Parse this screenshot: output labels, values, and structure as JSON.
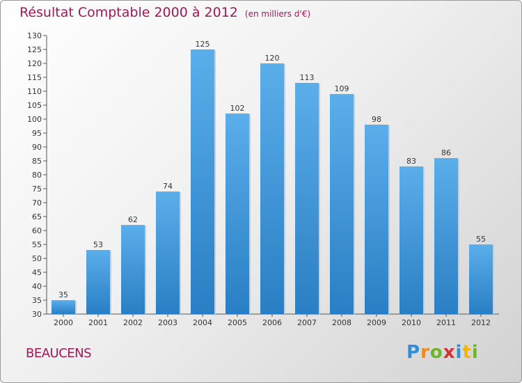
{
  "header": {
    "title": "Résultat Comptable 2000 à 2012",
    "subtitle": "(en milliers d'€)"
  },
  "footer": {
    "commune": "BEAUCENS",
    "logo_letters": [
      {
        "char": "P",
        "color": "#2f8fd8"
      },
      {
        "char": "r",
        "color": "#f08a1c"
      },
      {
        "char": "o",
        "color": "#6cb52d"
      },
      {
        "char": "x",
        "color": "#d6322f"
      },
      {
        "char": "i",
        "color": "#2f8fd8"
      },
      {
        "char": "t",
        "color": "#f5b400"
      },
      {
        "char": "i",
        "color": "#6cb52d"
      }
    ]
  },
  "chart_data": {
    "type": "bar",
    "categories": [
      "2000",
      "2001",
      "2002",
      "2003",
      "2004",
      "2005",
      "2006",
      "2007",
      "2008",
      "2009",
      "2010",
      "2011",
      "2012"
    ],
    "values": [
      35,
      53,
      62,
      74,
      125,
      102,
      120,
      113,
      109,
      98,
      83,
      86,
      55
    ],
    "ylim": [
      30,
      130
    ],
    "ytick_step": 5,
    "grid": false,
    "bar_color": "#3b98d9",
    "title": "Résultat Comptable 2000 à 2012",
    "xlabel": "",
    "ylabel": ""
  }
}
